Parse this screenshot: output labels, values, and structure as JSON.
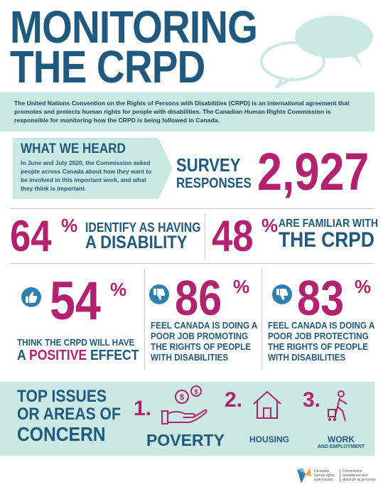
{
  "title": {
    "line1": "MONITORING",
    "line2": "THE CRPD"
  },
  "intro": "The United Nations Convention on the Rights of Persons with Disabilities (CRPD) is an international agreement that promotes and protects human rights for people with disabilities. The Canadian Human Rights Commission is responsible for monitoring how the CRPD is being followed in Canada.",
  "what_we_heard": {
    "heading": "WHAT WE HEARD",
    "body": "In June and July 2020, the Commission asked people across Canada about how they want to be involved in this important work, and what they think is important."
  },
  "survey": {
    "line1": "SURVEY",
    "line2": "RESPONSES",
    "value": "2,927"
  },
  "stats_row1": [
    {
      "value": "64",
      "pct": "%",
      "line1": "IDENTIFY AS HAVING",
      "line2": "A DISABILITY"
    },
    {
      "value": "48",
      "pct": "%",
      "line1": "ARE FAMILIAR WITH",
      "line2": "THE CRPD"
    }
  ],
  "stats_row2": [
    {
      "value": "54",
      "pct": "%",
      "icon": "thumbs-up-icon",
      "line1": "THINK THE CRPD WILL HAVE",
      "line2a": "A ",
      "line2b": "POSITIVE",
      "line2c": " EFFECT"
    },
    {
      "value": "86",
      "pct": "%",
      "icon": "thumbs-down-icon",
      "line1": "FEEL CANADA IS DOING A",
      "line2": "POOR JOB PROMOTING",
      "line3": "THE RIGHTS OF PEOPLE",
      "line4": "WITH DISABILITIES"
    },
    {
      "value": "83",
      "pct": "%",
      "icon": "thumbs-down-icon",
      "line1": "FEEL CANADA IS DOING A",
      "line2": "POOR JOB PROTECTING",
      "line3": "THE RIGHTS OF PEOPLE",
      "line4": "WITH DISABILITIES"
    }
  ],
  "issues": {
    "heading_line1": "TOP ISSUES",
    "heading_line2": "OR AREAS OF",
    "heading_line3": "CONCERN",
    "items": [
      {
        "rank": "1.",
        "label": "POVERTY",
        "icon": "hand-with-coins-icon"
      },
      {
        "rank": "2.",
        "label": "HOUSING",
        "icon": "house-icon"
      },
      {
        "rank": "3.",
        "label": "WORK",
        "sublabel": "AND EMPLOYMENT",
        "icon": "worker-with-cart-icon"
      }
    ]
  },
  "footer": {
    "en_line1": "Canadian",
    "en_line2": "human rights",
    "en_line3": "commission",
    "fr_line1": "Commission",
    "fr_line2": "canadienne des",
    "fr_line3": "droits de la personne"
  },
  "colors": {
    "navy": "#1f5a7e",
    "magenta": "#b3226e",
    "mint": "#cbe9e4",
    "thumb": "#2f7fb0"
  }
}
